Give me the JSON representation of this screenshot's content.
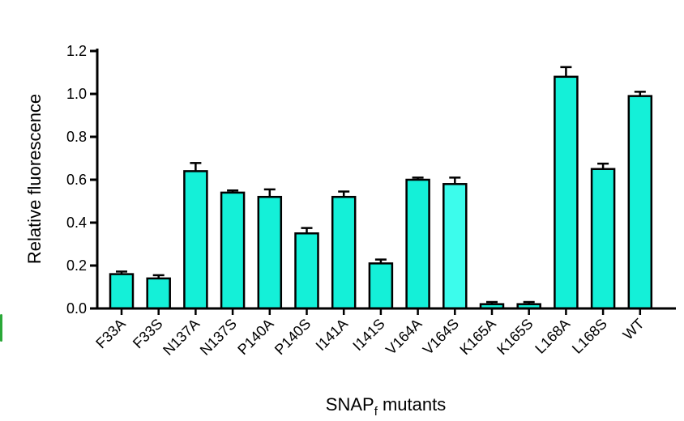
{
  "chart_data": {
    "type": "bar",
    "title": "",
    "xlabel": "SNAP",
    "xlabel_subscript": "f",
    "xlabel_suffix": " mutants",
    "ylabel": "Relative fluorescence",
    "ylim": [
      0,
      1.2
    ],
    "yticks": [
      "0.0",
      "0.2",
      "0.4",
      "0.6",
      "0.8",
      "1.0",
      "1.2"
    ],
    "categories": [
      "F33A",
      "F33S",
      "N137A",
      "N137S",
      "P140A",
      "P140S",
      "I141A",
      "I141S",
      "V164A",
      "V164S",
      "K165A",
      "K165S",
      "L168A",
      "L168S",
      "WT"
    ],
    "values": [
      0.16,
      0.14,
      0.64,
      0.54,
      0.52,
      0.35,
      0.52,
      0.21,
      0.6,
      0.58,
      0.02,
      0.02,
      1.08,
      0.65,
      0.99
    ],
    "errors": [
      0.012,
      0.015,
      0.038,
      0.01,
      0.035,
      0.025,
      0.025,
      0.018,
      0.01,
      0.03,
      0.01,
      0.01,
      0.045,
      0.025,
      0.02
    ],
    "bar_color": "#14f0d8",
    "bar_color_alt": "#3cfcec",
    "grid": false,
    "legend": "none"
  }
}
